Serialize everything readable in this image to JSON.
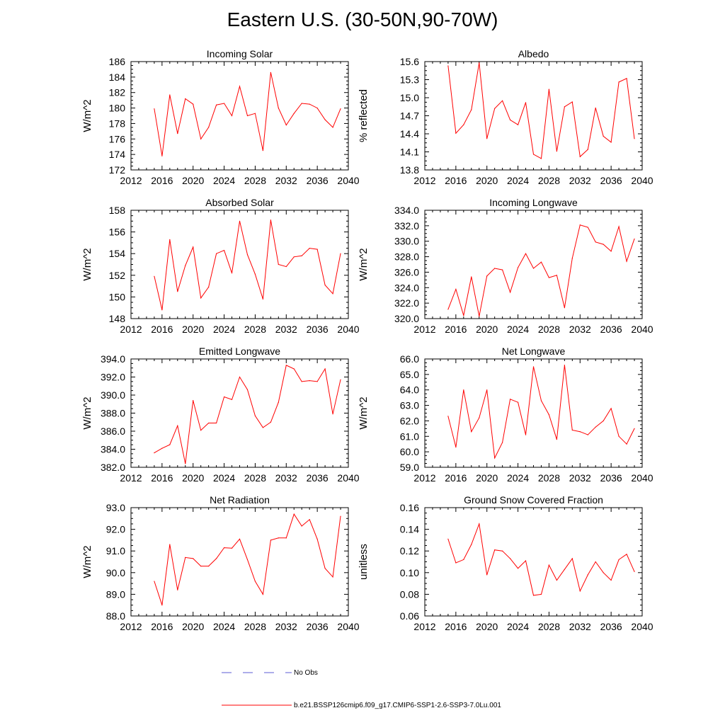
{
  "title": "Eastern U.S. (30-50N,90-70W)",
  "colors": {
    "model_line": "#ff0000",
    "obs_line": "#5b5bd6",
    "axis": "#000000"
  },
  "legend": {
    "obs_label": "No Obs",
    "model_label": "b.e21.BSSP126cmip6.f09_g17.CMIP6-SSP1-2.6-SSP3-7.0Lu.001"
  },
  "chart_data": [
    {
      "type": "line",
      "title": "Incoming Solar",
      "ylabel": "W/m^2",
      "xlim": [
        2012,
        2040
      ],
      "ylim": [
        172,
        186
      ],
      "xticks": [
        2012,
        2016,
        2020,
        2024,
        2028,
        2032,
        2036,
        2040
      ],
      "yticks": [
        172,
        174,
        176,
        178,
        180,
        182,
        184,
        186
      ],
      "ytick_decimals": 0,
      "grid": false,
      "x": [
        2015,
        2016,
        2017,
        2018,
        2019,
        2020,
        2021,
        2022,
        2023,
        2024,
        2025,
        2026,
        2027,
        2028,
        2029,
        2030,
        2031,
        2032,
        2033,
        2034,
        2035,
        2036,
        2037,
        2038,
        2039
      ],
      "values": [
        179.9,
        173.8,
        181.7,
        176.7,
        181.2,
        180.5,
        176.0,
        177.5,
        180.4,
        180.6,
        179.0,
        182.8,
        179.0,
        179.3,
        174.5,
        184.6,
        180.0,
        177.8,
        179.3,
        180.6,
        180.5,
        180.0,
        178.5,
        177.5,
        179.9
      ]
    },
    {
      "type": "line",
      "title": "Albedo",
      "ylabel": "% reflected",
      "xlim": [
        2012,
        2040
      ],
      "ylim": [
        13.8,
        15.6
      ],
      "xticks": [
        2012,
        2016,
        2020,
        2024,
        2028,
        2032,
        2036,
        2040
      ],
      "yticks": [
        13.8,
        14.1,
        14.4,
        14.7,
        15.0,
        15.3,
        15.6
      ],
      "ytick_decimals": 1,
      "grid": false,
      "x": [
        2015,
        2016,
        2017,
        2018,
        2019,
        2020,
        2021,
        2022,
        2023,
        2024,
        2025,
        2026,
        2027,
        2028,
        2029,
        2030,
        2031,
        2032,
        2033,
        2034,
        2035,
        2036,
        2037,
        2038,
        2039
      ],
      "values": [
        15.53,
        14.41,
        14.55,
        14.8,
        15.58,
        14.32,
        14.82,
        14.95,
        14.63,
        14.55,
        14.92,
        14.06,
        13.99,
        15.14,
        14.11,
        14.85,
        14.93,
        14.02,
        14.14,
        14.83,
        14.36,
        14.26,
        15.26,
        15.32,
        14.32
      ]
    },
    {
      "type": "line",
      "title": "Absorbed Solar",
      "ylabel": "W/m^2",
      "xlim": [
        2012,
        2040
      ],
      "ylim": [
        148,
        158
      ],
      "xticks": [
        2012,
        2016,
        2020,
        2024,
        2028,
        2032,
        2036,
        2040
      ],
      "yticks": [
        148,
        150,
        152,
        154,
        156,
        158
      ],
      "ytick_decimals": 0,
      "grid": false,
      "x": [
        2015,
        2016,
        2017,
        2018,
        2019,
        2020,
        2021,
        2022,
        2023,
        2024,
        2025,
        2026,
        2027,
        2028,
        2029,
        2030,
        2031,
        2032,
        2033,
        2034,
        2035,
        2036,
        2037,
        2038,
        2039
      ],
      "values": [
        151.9,
        148.8,
        155.3,
        150.5,
        152.9,
        154.6,
        149.9,
        150.9,
        154.0,
        154.3,
        152.2,
        157.0,
        153.9,
        152.1,
        149.8,
        157.1,
        153.0,
        152.8,
        153.7,
        153.8,
        154.5,
        154.4,
        151.1,
        150.3,
        154.0
      ]
    },
    {
      "type": "line",
      "title": "Incoming Longwave",
      "ylabel": "W/m^2",
      "xlim": [
        2012,
        2040
      ],
      "ylim": [
        320,
        334
      ],
      "xticks": [
        2012,
        2016,
        2020,
        2024,
        2028,
        2032,
        2036,
        2040
      ],
      "yticks": [
        320,
        322,
        324,
        326,
        328,
        330,
        332,
        334
      ],
      "ytick_decimals": 1,
      "grid": false,
      "x": [
        2015,
        2016,
        2017,
        2018,
        2019,
        2020,
        2021,
        2022,
        2023,
        2024,
        2025,
        2026,
        2027,
        2028,
        2029,
        2030,
        2031,
        2032,
        2033,
        2034,
        2035,
        2036,
        2037,
        2038,
        2039
      ],
      "values": [
        321.2,
        323.8,
        320.4,
        325.4,
        320.3,
        325.5,
        326.5,
        326.3,
        323.4,
        326.6,
        328.4,
        326.5,
        327.3,
        325.3,
        325.6,
        321.4,
        327.8,
        332.1,
        331.8,
        329.9,
        329.6,
        328.7,
        331.9,
        327.4,
        330.3
      ]
    },
    {
      "type": "line",
      "title": "Emitted Longwave",
      "ylabel": "W/m^2",
      "xlim": [
        2012,
        2040
      ],
      "ylim": [
        382,
        394
      ],
      "xticks": [
        2012,
        2016,
        2020,
        2024,
        2028,
        2032,
        2036,
        2040
      ],
      "yticks": [
        382,
        384,
        386,
        388,
        390,
        392,
        394
      ],
      "ytick_decimals": 1,
      "grid": false,
      "x": [
        2015,
        2016,
        2017,
        2018,
        2019,
        2020,
        2021,
        2022,
        2023,
        2024,
        2025,
        2026,
        2027,
        2028,
        2029,
        2030,
        2031,
        2032,
        2033,
        2034,
        2035,
        2036,
        2037,
        2038,
        2039
      ],
      "values": [
        383.6,
        384.1,
        384.5,
        386.6,
        382.4,
        389.4,
        386.1,
        386.9,
        386.9,
        389.8,
        389.5,
        392.0,
        390.6,
        387.7,
        386.4,
        387.0,
        389.2,
        393.3,
        392.9,
        391.5,
        391.6,
        391.5,
        392.9,
        387.9,
        391.7
      ]
    },
    {
      "type": "line",
      "title": "Net Longwave",
      "ylabel": "W/m^2",
      "xlim": [
        2012,
        2040
      ],
      "ylim": [
        59,
        66
      ],
      "xticks": [
        2012,
        2016,
        2020,
        2024,
        2028,
        2032,
        2036,
        2040
      ],
      "yticks": [
        59,
        60,
        61,
        62,
        63,
        64,
        65,
        66
      ],
      "ytick_decimals": 1,
      "grid": false,
      "x": [
        2015,
        2016,
        2017,
        2018,
        2019,
        2020,
        2021,
        2022,
        2023,
        2024,
        2025,
        2026,
        2027,
        2028,
        2029,
        2030,
        2031,
        2032,
        2033,
        2034,
        2035,
        2036,
        2037,
        2038,
        2039
      ],
      "values": [
        62.3,
        60.3,
        64.0,
        61.3,
        62.2,
        64.0,
        59.6,
        60.6,
        63.4,
        63.2,
        61.1,
        65.5,
        63.3,
        62.4,
        60.8,
        65.6,
        61.4,
        61.3,
        61.1,
        61.6,
        62.0,
        62.8,
        61.0,
        60.5,
        61.5
      ]
    },
    {
      "type": "line",
      "title": "Net Radiation",
      "ylabel": "W/m^2",
      "xlim": [
        2012,
        2040
      ],
      "ylim": [
        88,
        93
      ],
      "xticks": [
        2012,
        2016,
        2020,
        2024,
        2028,
        2032,
        2036,
        2040
      ],
      "yticks": [
        88,
        89,
        90,
        91,
        92,
        93
      ],
      "ytick_decimals": 1,
      "grid": false,
      "x": [
        2015,
        2016,
        2017,
        2018,
        2019,
        2020,
        2021,
        2022,
        2023,
        2024,
        2025,
        2026,
        2027,
        2028,
        2029,
        2030,
        2031,
        2032,
        2033,
        2034,
        2035,
        2036,
        2037,
        2038,
        2039
      ],
      "values": [
        89.6,
        88.5,
        91.3,
        89.2,
        90.7,
        90.65,
        90.3,
        90.3,
        90.65,
        91.15,
        91.13,
        91.55,
        90.6,
        89.6,
        89.0,
        91.5,
        91.6,
        91.6,
        92.7,
        92.15,
        92.45,
        91.55,
        90.2,
        89.8,
        92.6
      ]
    },
    {
      "type": "line",
      "title": "Ground Snow Covered Fraction",
      "ylabel": "unitless",
      "xlim": [
        2012,
        2040
      ],
      "ylim": [
        0.06,
        0.16
      ],
      "xticks": [
        2012,
        2016,
        2020,
        2024,
        2028,
        2032,
        2036,
        2040
      ],
      "yticks": [
        0.06,
        0.08,
        0.1,
        0.12,
        0.14,
        0.16
      ],
      "ytick_decimals": 2,
      "grid": false,
      "x": [
        2015,
        2016,
        2017,
        2018,
        2019,
        2020,
        2021,
        2022,
        2023,
        2024,
        2025,
        2026,
        2027,
        2028,
        2029,
        2030,
        2031,
        2032,
        2033,
        2034,
        2035,
        2036,
        2037,
        2038,
        2039
      ],
      "values": [
        0.131,
        0.109,
        0.112,
        0.126,
        0.145,
        0.098,
        0.121,
        0.12,
        0.113,
        0.104,
        0.111,
        0.079,
        0.08,
        0.107,
        0.093,
        0.103,
        0.113,
        0.083,
        0.098,
        0.11,
        0.1,
        0.093,
        0.112,
        0.117,
        0.101
      ]
    }
  ]
}
